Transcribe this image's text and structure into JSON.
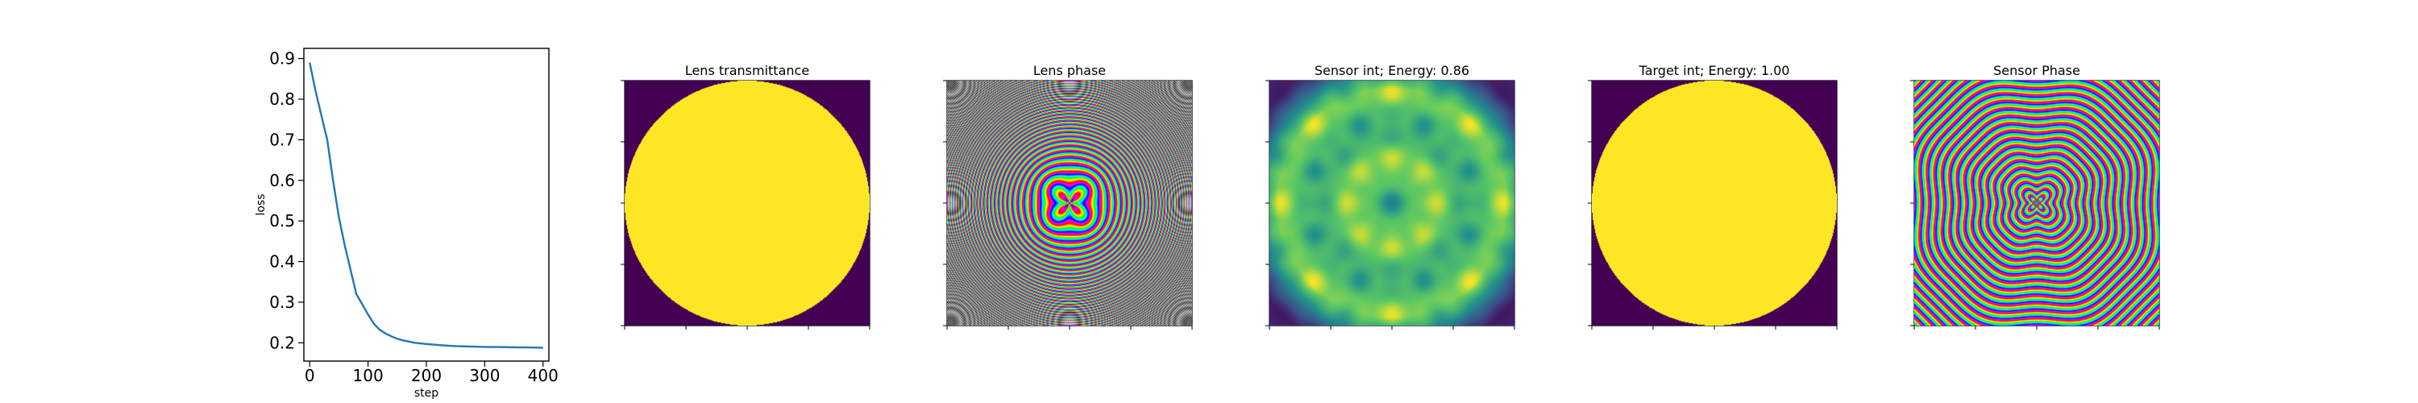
{
  "chart_data": [
    {
      "type": "line",
      "xlabel": "step",
      "ylabel": "loss",
      "xlim": [
        -10,
        410
      ],
      "ylim": [
        0.155,
        0.925
      ],
      "xticks": [
        "0",
        "100",
        "200",
        "300",
        "400"
      ],
      "yticks": [
        "0.2",
        "0.3",
        "0.4",
        "0.5",
        "0.6",
        "0.7",
        "0.8",
        "0.9"
      ],
      "grid": false,
      "series": [
        {
          "color": "#1f77b4",
          "x": [
            0,
            10,
            20,
            30,
            40,
            50,
            60,
            70,
            80,
            90,
            100,
            110,
            120,
            130,
            140,
            150,
            160,
            180,
            200,
            225,
            250,
            275,
            300,
            325,
            350,
            375,
            400
          ],
          "y": [
            0.89,
            0.82,
            0.76,
            0.7,
            0.6,
            0.51,
            0.44,
            0.38,
            0.32,
            0.295,
            0.27,
            0.247,
            0.232,
            0.223,
            0.216,
            0.21,
            0.206,
            0.2,
            0.197,
            0.194,
            0.192,
            0.191,
            0.19,
            0.1895,
            0.189,
            0.1885,
            0.188
          ]
        }
      ]
    },
    {
      "type": "heatmap",
      "title": "Lens transmittance",
      "pattern": "disk",
      "colormap": "viridis"
    },
    {
      "type": "heatmap",
      "title": "Lens phase",
      "pattern": "phase-rings",
      "colormap": "hsv"
    },
    {
      "type": "heatmap",
      "title": "Sensor int; Energy: 0.86",
      "pattern": "intensity-petals",
      "colormap": "viridis"
    },
    {
      "type": "heatmap",
      "title": "Target int; Energy: 1.00",
      "pattern": "disk",
      "colormap": "viridis"
    },
    {
      "type": "heatmap",
      "title": "Sensor Phase",
      "pattern": "phase-sensor",
      "colormap": "hsv"
    }
  ]
}
